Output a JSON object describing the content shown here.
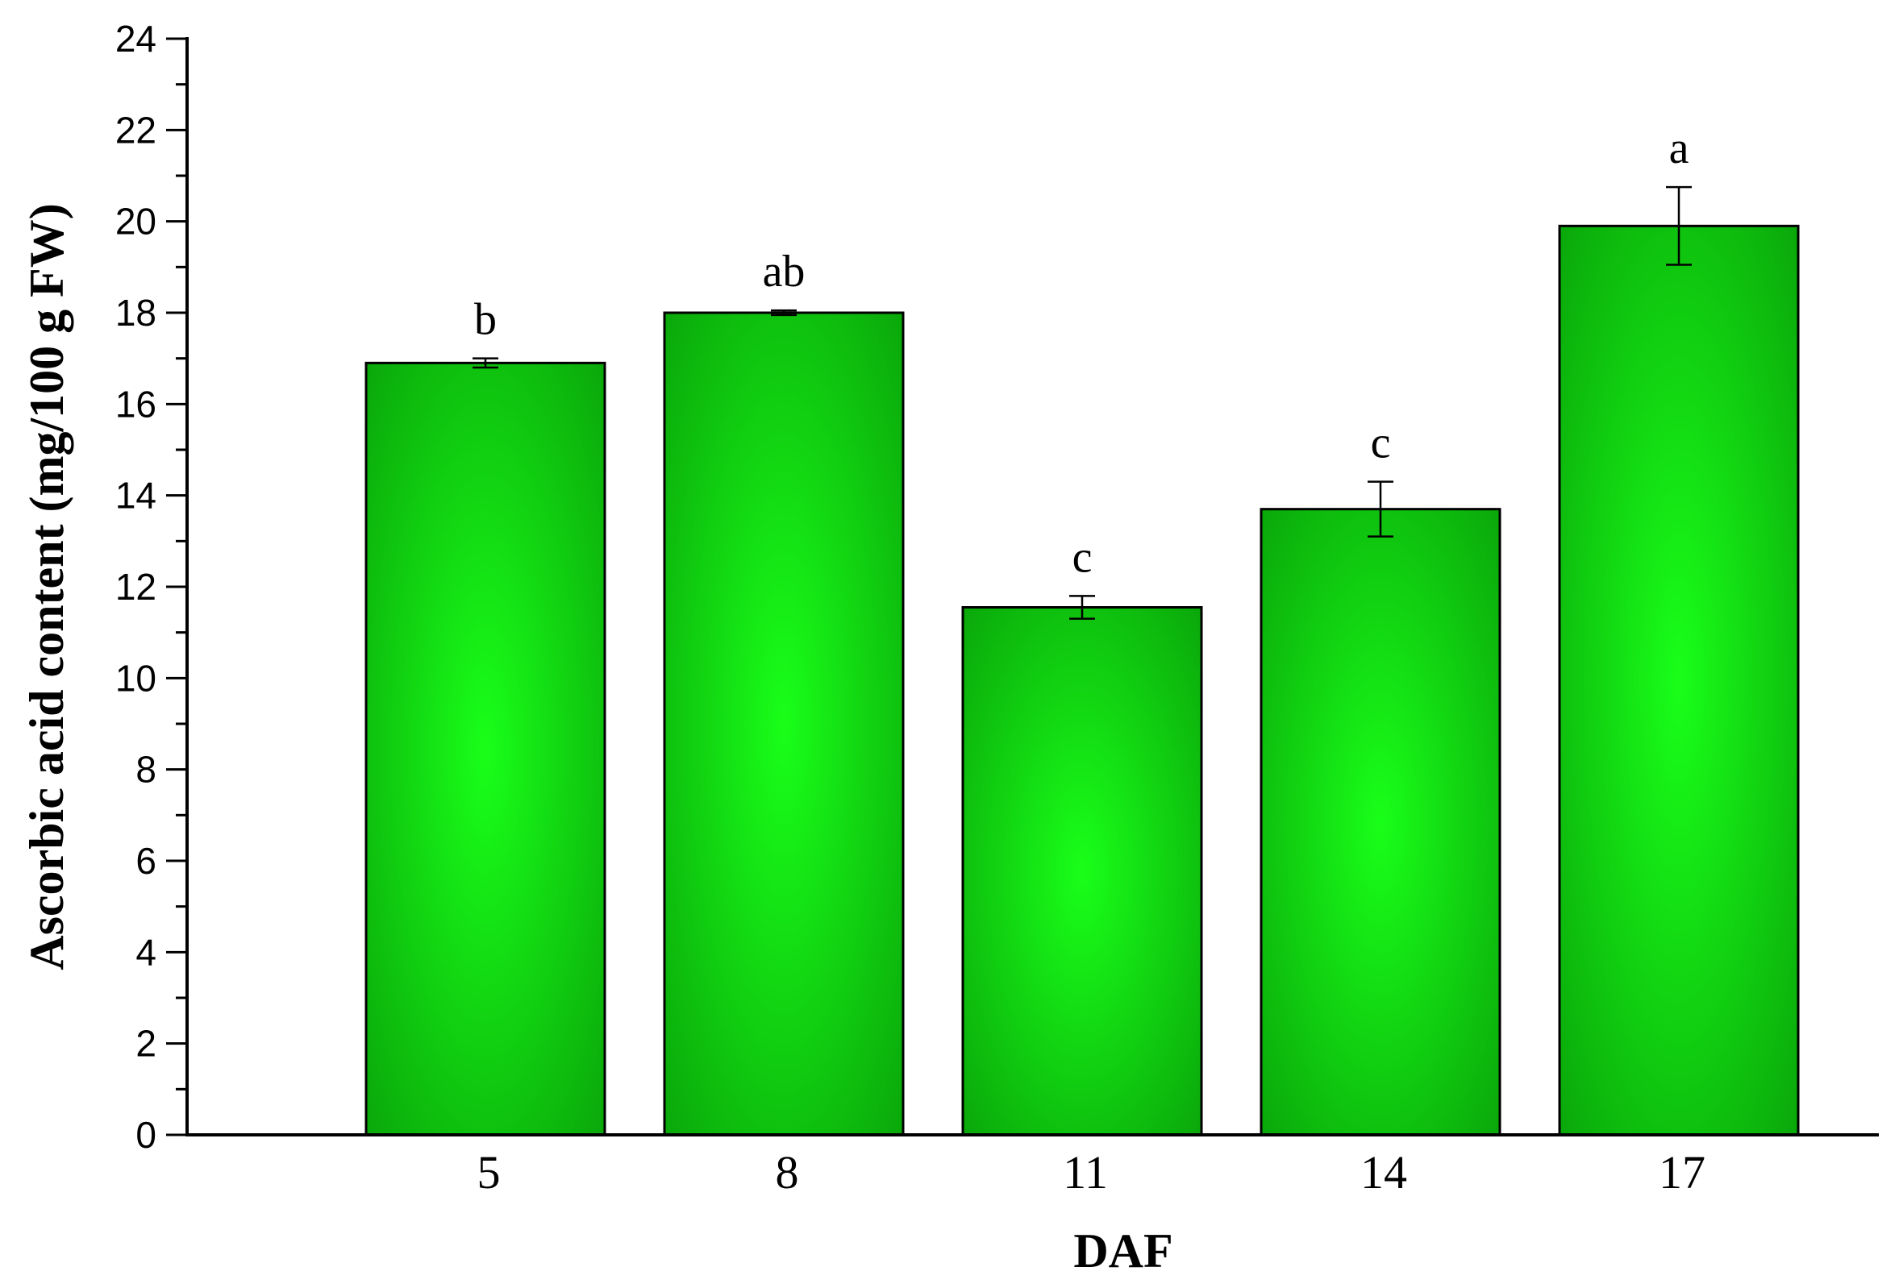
{
  "chart_data": {
    "type": "bar",
    "title": "",
    "xlabel": "DAF",
    "ylabel": "Ascorbic acid content (mg/100 g FW)",
    "categories": [
      "5",
      "8",
      "11",
      "14",
      "17"
    ],
    "values": [
      16.9,
      18.0,
      11.55,
      13.7,
      19.9
    ],
    "errors": [
      0.1,
      0.05,
      0.25,
      0.6,
      0.85
    ],
    "significance_letters": [
      "b",
      "ab",
      "c",
      "c",
      "a"
    ],
    "ylim": [
      0,
      24
    ],
    "yticks": [
      0,
      2,
      4,
      6,
      8,
      10,
      12,
      14,
      16,
      18,
      20,
      22,
      24
    ],
    "ytick_labels": [
      "0",
      "2",
      "4",
      "6",
      "8",
      "10",
      "12",
      "14",
      "16",
      "18",
      "20",
      "22",
      "24"
    ],
    "grid": false,
    "legend": "none",
    "colors": {
      "bar_center": "#19ff19",
      "bar_edge": "#0aa80a",
      "outline": "#000000"
    }
  }
}
